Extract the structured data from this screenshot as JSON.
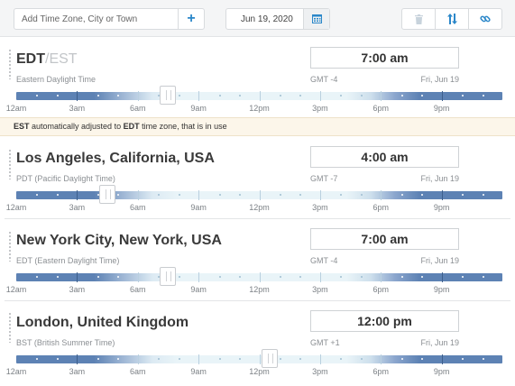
{
  "toolbar": {
    "search_placeholder": "Add Time Zone, City or Town",
    "add_label": "+",
    "date": "Jun 19, 2020"
  },
  "hour_labels": [
    "12am",
    "3am",
    "6am",
    "9am",
    "12pm",
    "3pm",
    "6pm",
    "9pm"
  ],
  "notice": {
    "abbr": "EST",
    "text1": " automatically adjusted to ",
    "abbr2": "EDT",
    "text2": " time zone, that is in use"
  },
  "zones": [
    {
      "title": "EDT",
      "title_alt": "/EST",
      "subtitle": "Eastern Daylight Time",
      "time": "7:00 am",
      "gmt": "GMT -4",
      "day": "Fri, Jun 19",
      "slider_hour": 7
    },
    {
      "title": "Los Angeles, California, USA",
      "subtitle": "PDT (Pacific Daylight Time)",
      "time": "4:00 am",
      "gmt": "GMT -7",
      "day": "Fri, Jun 19",
      "slider_hour": 4
    },
    {
      "title": "New York City, New York, USA",
      "subtitle": "EDT (Eastern Daylight Time)",
      "time": "7:00 am",
      "gmt": "GMT -4",
      "day": "Fri, Jun 19",
      "slider_hour": 7
    },
    {
      "title": "London, United Kingdom",
      "subtitle": "BST (British Summer Time)",
      "time": "12:00 pm",
      "gmt": "GMT +1",
      "day": "Fri, Jun 19",
      "slider_hour": 12
    }
  ]
}
